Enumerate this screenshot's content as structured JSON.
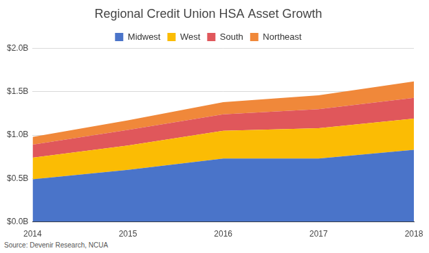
{
  "chart_data": {
    "type": "area",
    "title": "Regional Credit Union HSA Asset Growth",
    "source": "Source: Devenir Research, NCUA",
    "categories": [
      "2014",
      "2015",
      "2016",
      "2017",
      "2018"
    ],
    "series": [
      {
        "name": "Midwest",
        "color": "#4a74c9",
        "values": [
          0.49,
          0.6,
          0.73,
          0.73,
          0.83
        ]
      },
      {
        "name": "West",
        "color": "#fbbc04",
        "values": [
          0.25,
          0.28,
          0.32,
          0.35,
          0.36
        ]
      },
      {
        "name": "South",
        "color": "#e0575b",
        "values": [
          0.15,
          0.18,
          0.19,
          0.22,
          0.24
        ]
      },
      {
        "name": "Northeast",
        "color": "#f0883a",
        "values": [
          0.09,
          0.11,
          0.14,
          0.16,
          0.19
        ]
      }
    ],
    "stacked": true,
    "ylim": [
      0,
      2
    ],
    "yticks": [
      {
        "value": 0,
        "label": "$0.0B"
      },
      {
        "value": 0.5,
        "label": "$0.5B"
      },
      {
        "value": 1,
        "label": "$1.0B"
      },
      {
        "value": 1.5,
        "label": "$1.5B"
      },
      {
        "value": 2,
        "label": "$2.0B"
      }
    ],
    "grid": true,
    "legend": "top"
  }
}
